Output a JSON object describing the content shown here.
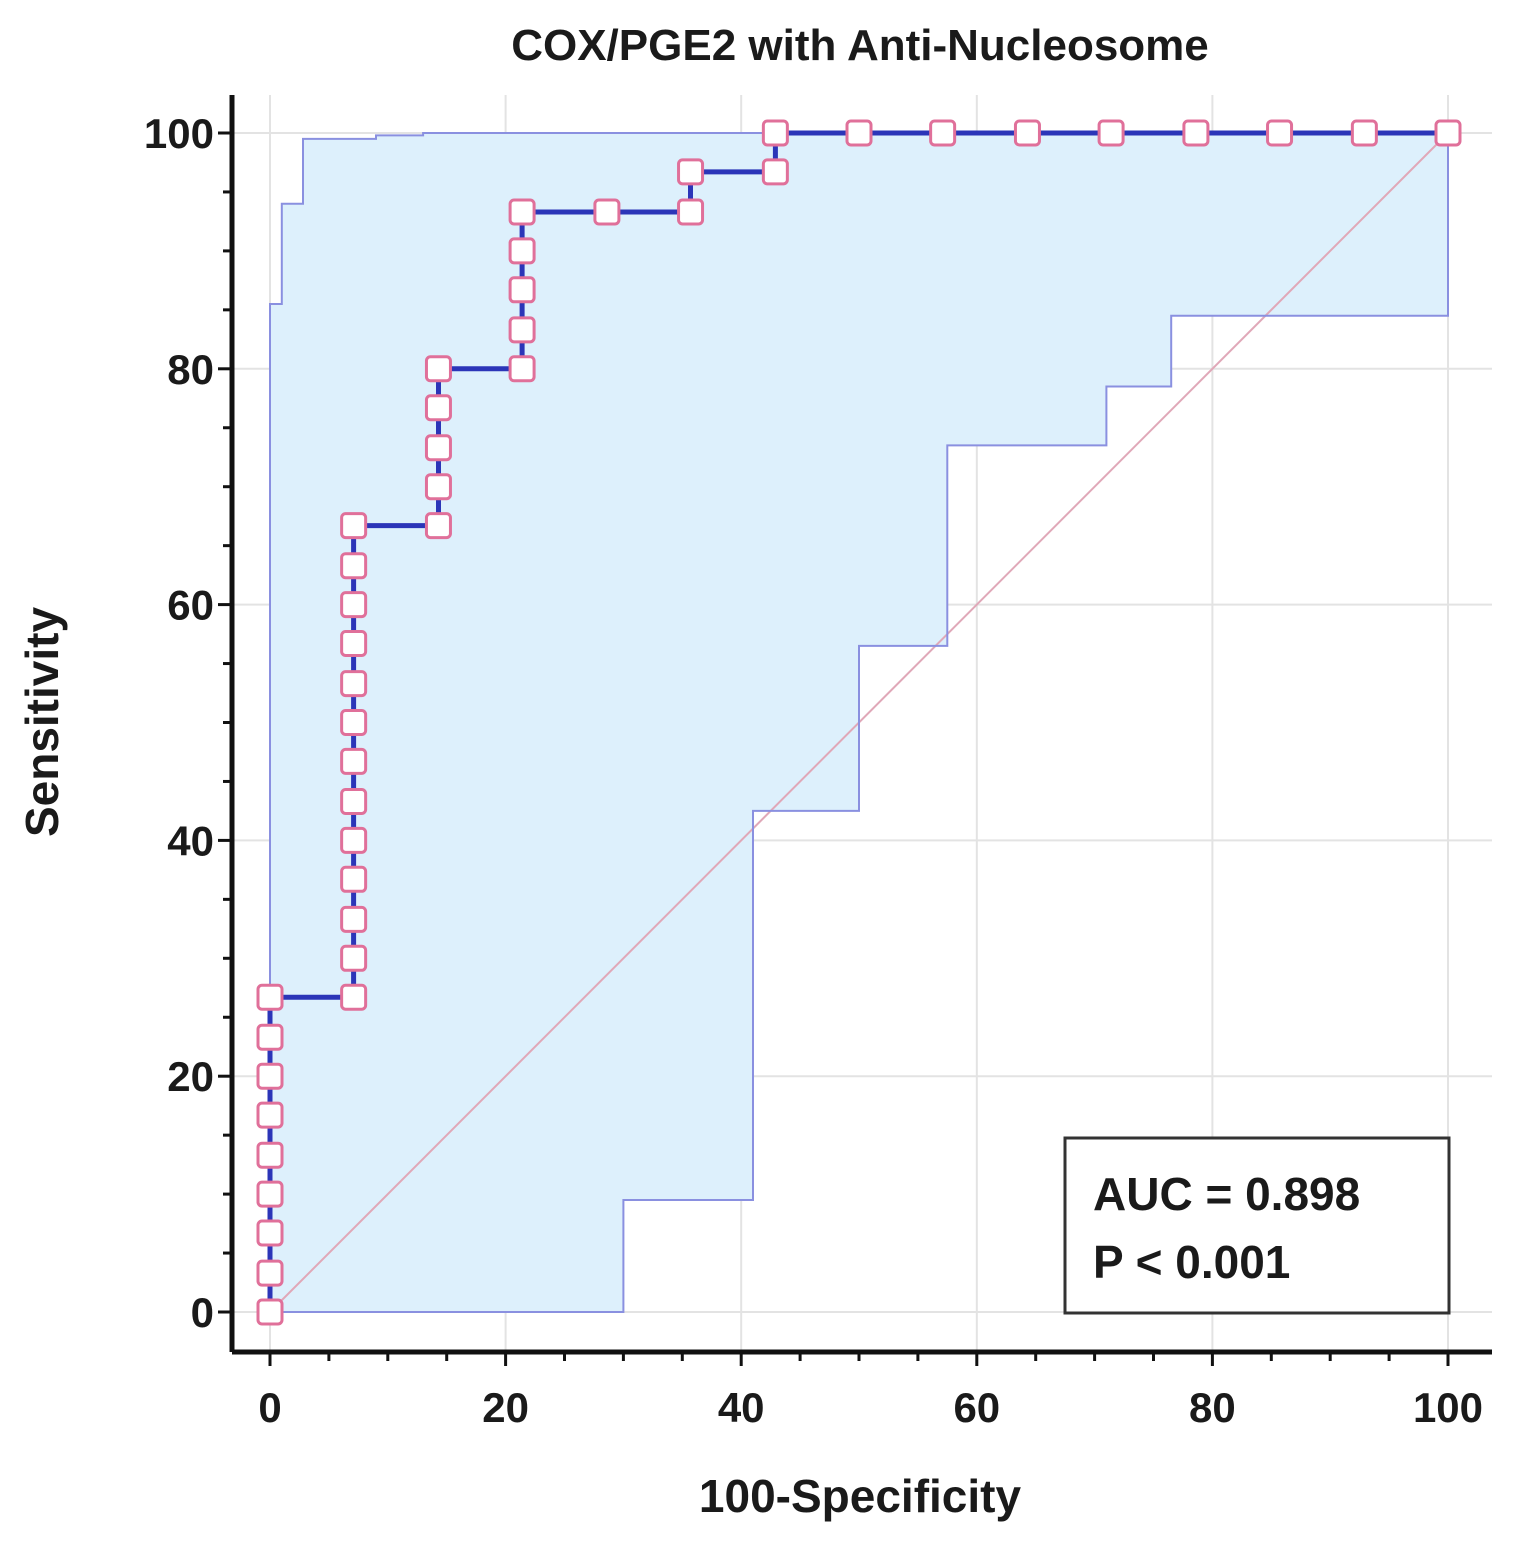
{
  "chart_data": {
    "type": "line",
    "title": "COX/PGE2 with Anti-Nucleosome",
    "xlabel": "100-Specificity",
    "ylabel": "Sensitivity",
    "xlim": [
      0,
      100
    ],
    "ylim": [
      0,
      100
    ],
    "xticks": [
      "0",
      "20",
      "40",
      "60",
      "80",
      "100"
    ],
    "yticks": [
      "0",
      "20",
      "40",
      "60",
      "80",
      "100"
    ],
    "x_minor_step": 5,
    "y_minor_step": 5,
    "grid": true,
    "series": [
      {
        "role": "roc-curve",
        "color": "#2b35b8",
        "marker_color": "#e0709a",
        "points": [
          [
            0,
            0
          ],
          [
            0,
            3.3
          ],
          [
            0,
            6.7
          ],
          [
            0,
            10
          ],
          [
            0,
            13.3
          ],
          [
            0,
            16.7
          ],
          [
            0,
            20
          ],
          [
            0,
            23.3
          ],
          [
            0,
            26.7
          ],
          [
            7.1,
            26.7
          ],
          [
            7.1,
            30
          ],
          [
            7.1,
            33.3
          ],
          [
            7.1,
            36.7
          ],
          [
            7.1,
            40
          ],
          [
            7.1,
            43.3
          ],
          [
            7.1,
            46.7
          ],
          [
            7.1,
            50
          ],
          [
            7.1,
            53.3
          ],
          [
            7.1,
            56.7
          ],
          [
            7.1,
            60
          ],
          [
            7.1,
            63.3
          ],
          [
            7.1,
            66.7
          ],
          [
            14.3,
            66.7
          ],
          [
            14.3,
            70
          ],
          [
            14.3,
            73.3
          ],
          [
            14.3,
            76.7
          ],
          [
            14.3,
            80
          ],
          [
            21.4,
            80
          ],
          [
            21.4,
            83.3
          ],
          [
            21.4,
            86.7
          ],
          [
            21.4,
            90
          ],
          [
            21.4,
            93.3
          ],
          [
            28.6,
            93.3
          ],
          [
            35.7,
            93.3
          ],
          [
            35.7,
            96.7
          ],
          [
            42.9,
            96.7
          ],
          [
            42.9,
            100
          ],
          [
            50,
            100
          ],
          [
            57.1,
            100
          ],
          [
            64.3,
            100
          ],
          [
            71.4,
            100
          ],
          [
            78.6,
            100
          ],
          [
            85.7,
            100
          ],
          [
            92.9,
            100
          ],
          [
            100,
            100
          ]
        ]
      },
      {
        "role": "confidence-upper",
        "color": "#8a90e0",
        "points": [
          [
            0,
            0
          ],
          [
            0,
            85.5
          ],
          [
            1,
            85.5
          ],
          [
            1,
            94
          ],
          [
            2.8,
            94
          ],
          [
            2.8,
            99.5
          ],
          [
            9,
            99.5
          ],
          [
            9,
            99.8
          ],
          [
            13,
            99.8
          ],
          [
            13,
            100
          ],
          [
            100,
            100
          ]
        ]
      },
      {
        "role": "confidence-lower",
        "color": "#8a90e0",
        "points": [
          [
            0,
            0
          ],
          [
            30,
            0
          ],
          [
            30,
            9.5
          ],
          [
            41,
            9.5
          ],
          [
            41,
            42.5
          ],
          [
            50,
            42.5
          ],
          [
            50,
            56.5
          ],
          [
            57.5,
            56.5
          ],
          [
            57.5,
            73.5
          ],
          [
            71,
            73.5
          ],
          [
            71,
            78.5
          ],
          [
            76.5,
            78.5
          ],
          [
            76.5,
            84.5
          ],
          [
            100,
            84.5
          ],
          [
            100,
            100
          ]
        ]
      },
      {
        "role": "reference-diagonal",
        "color": "#e0a8b8",
        "points": [
          [
            0,
            0
          ],
          [
            100,
            100
          ]
        ]
      }
    ],
    "band_fill": "#ddf0fc",
    "annotations": {
      "auc": "AUC = 0.898",
      "p_value": "P < 0.001"
    },
    "annotation_placement": "bottom-right"
  }
}
